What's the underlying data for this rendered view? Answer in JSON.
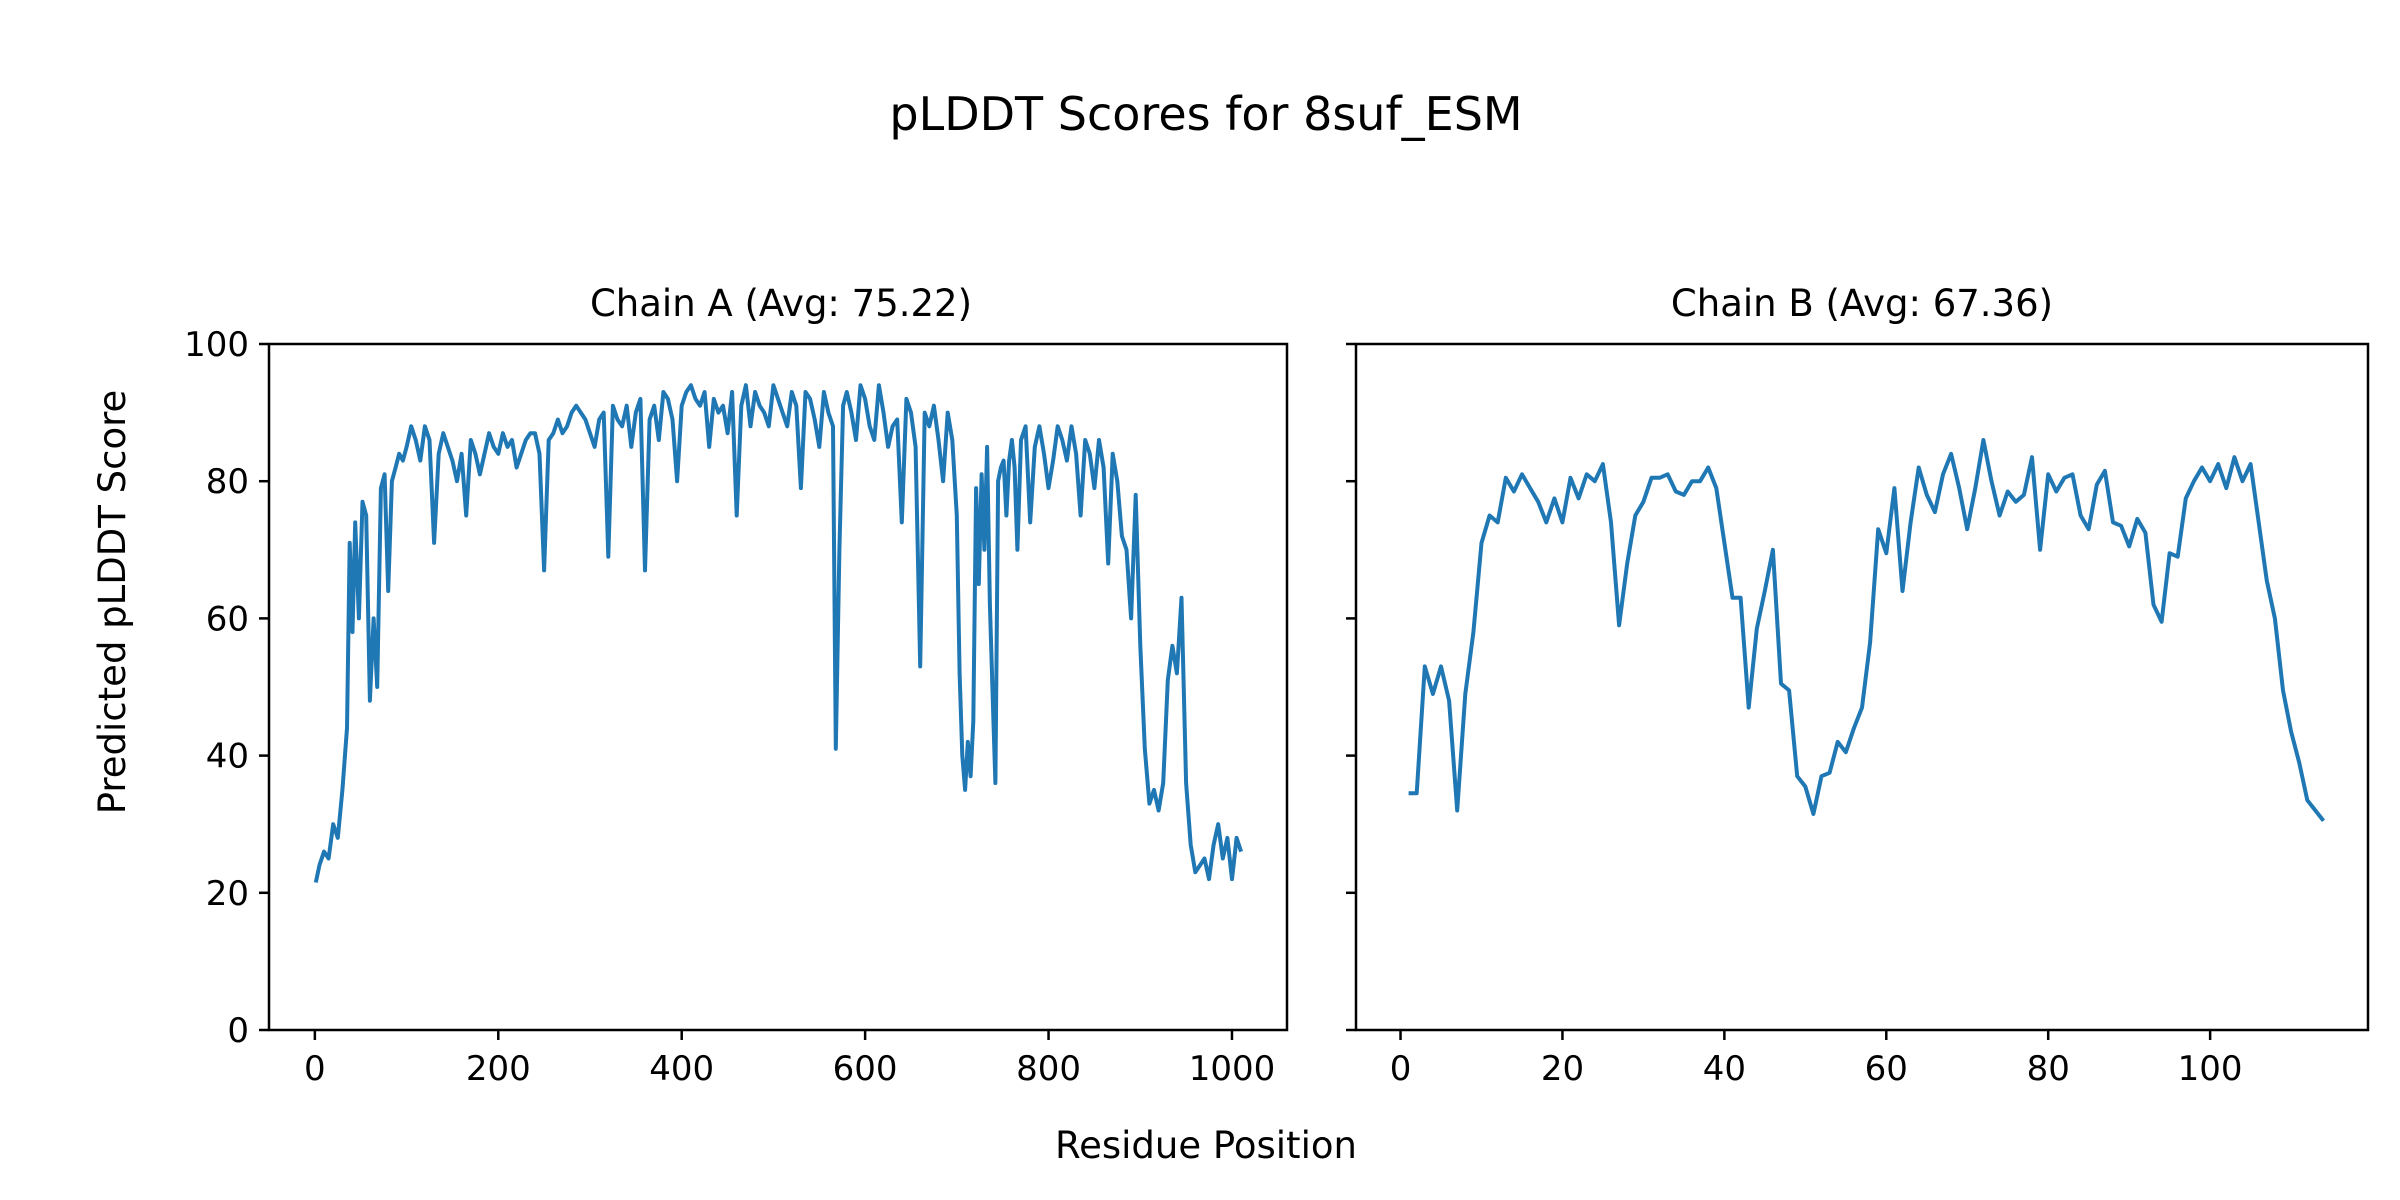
{
  "figure": {
    "title": "pLDDT Scores for 8suf_ESM",
    "shared_xlabel": "Residue Position",
    "shared_ylabel": "Predicted pLDDT Score"
  },
  "colors": {
    "line": "#1f77b4",
    "axis": "#000000",
    "background": "#ffffff"
  },
  "chart_data": [
    {
      "type": "line",
      "title": "Chain A (Avg: 75.22)",
      "xlabel": "Residue Position",
      "ylabel": "Predicted pLDDT Score",
      "xlim": [
        -50,
        1060
      ],
      "ylim": [
        0,
        100
      ],
      "xticks": [
        0,
        200,
        400,
        600,
        800,
        1000
      ],
      "yticks": [
        0,
        20,
        40,
        60,
        80,
        100
      ],
      "grid": false,
      "series": [
        {
          "name": "Chain A",
          "x": [
            1,
            5,
            10,
            15,
            20,
            25,
            30,
            35,
            38,
            41,
            44,
            48,
            52,
            56,
            60,
            64,
            68,
            72,
            76,
            80,
            84,
            88,
            92,
            96,
            100,
            105,
            110,
            115,
            120,
            125,
            130,
            135,
            140,
            145,
            150,
            155,
            160,
            165,
            170,
            175,
            180,
            185,
            190,
            195,
            200,
            205,
            210,
            215,
            220,
            225,
            230,
            235,
            240,
            245,
            250,
            255,
            260,
            265,
            270,
            275,
            280,
            285,
            290,
            295,
            300,
            305,
            310,
            315,
            320,
            325,
            330,
            335,
            340,
            345,
            350,
            355,
            360,
            365,
            370,
            375,
            380,
            385,
            390,
            395,
            400,
            405,
            410,
            415,
            420,
            425,
            430,
            435,
            440,
            445,
            450,
            455,
            460,
            465,
            470,
            475,
            480,
            485,
            490,
            495,
            500,
            505,
            510,
            515,
            520,
            525,
            530,
            535,
            540,
            545,
            550,
            555,
            560,
            565,
            568,
            572,
            576,
            580,
            585,
            590,
            595,
            600,
            605,
            610,
            615,
            620,
            625,
            630,
            635,
            640,
            645,
            650,
            655,
            660,
            665,
            670,
            675,
            680,
            685,
            690,
            695,
            700,
            703,
            706,
            709,
            712,
            715,
            718,
            721,
            724,
            727,
            730,
            733,
            736,
            739,
            742,
            745,
            748,
            751,
            754,
            757,
            760,
            763,
            766,
            770,
            775,
            780,
            785,
            790,
            795,
            800,
            805,
            810,
            815,
            820,
            825,
            830,
            835,
            840,
            845,
            850,
            855,
            860,
            865,
            870,
            875,
            880,
            885,
            890,
            895,
            900,
            905,
            910,
            915,
            920,
            925,
            930,
            935,
            940,
            945,
            950,
            955,
            960,
            965,
            970,
            975,
            980,
            985,
            990,
            995,
            1000,
            1005,
            1010
          ],
          "y": [
            21.5,
            24,
            26,
            25,
            30,
            28,
            35,
            44,
            71,
            58,
            74,
            60,
            77,
            75,
            48,
            60,
            50,
            79,
            81,
            64,
            80,
            82,
            84,
            83,
            85,
            88,
            86,
            83,
            88,
            86,
            71,
            84,
            87,
            85,
            83,
            80,
            84,
            75,
            86,
            84,
            81,
            84,
            87,
            85,
            84,
            87,
            85,
            86,
            82,
            84,
            86,
            87,
            87,
            84,
            67,
            86,
            87,
            89,
            87,
            88,
            90,
            91,
            90,
            89,
            87,
            85,
            89,
            90,
            69,
            91,
            89,
            88,
            91,
            85,
            90,
            92,
            67,
            89,
            91,
            86,
            93,
            92,
            89,
            80,
            91,
            93,
            94,
            92,
            91,
            93,
            85,
            92,
            90,
            91,
            87,
            93,
            75,
            91,
            94,
            88,
            93,
            91,
            90,
            88,
            94,
            92,
            90,
            88,
            93,
            91,
            79,
            93,
            92,
            89,
            85,
            93,
            90,
            88,
            41,
            70,
            91,
            93,
            90,
            86,
            94,
            92,
            88,
            86,
            94,
            90,
            85,
            88,
            89,
            74,
            92,
            90,
            85,
            53,
            90,
            88,
            91,
            86,
            80,
            90,
            86,
            75,
            52,
            40,
            35,
            42,
            37,
            45,
            79,
            65,
            81,
            70,
            85,
            62,
            49,
            36,
            80,
            82,
            83,
            75,
            83,
            86,
            82,
            70,
            86,
            88,
            74,
            85,
            88,
            84,
            79,
            83,
            88,
            86,
            83,
            88,
            84,
            75,
            86,
            84,
            79,
            86,
            82,
            68,
            84,
            80,
            72,
            70,
            60,
            78,
            56,
            41,
            33,
            35,
            32,
            36,
            51,
            56,
            52,
            63,
            36,
            27,
            23,
            24,
            25,
            22,
            27,
            30,
            25,
            28,
            22,
            28,
            26
          ]
        }
      ]
    },
    {
      "type": "line",
      "title": "Chain B (Avg: 67.36)",
      "xlabel": "Residue Position",
      "ylabel": "",
      "xlim": [
        -5.5,
        119.5
      ],
      "ylim": [
        0,
        100
      ],
      "xticks": [
        0,
        20,
        40,
        60,
        80,
        100
      ],
      "yticks": [
        0,
        20,
        40,
        60,
        80,
        100
      ],
      "ytick_labels_shown": false,
      "grid": false,
      "series": [
        {
          "name": "Chain B",
          "x": [
            1,
            2,
            3,
            4,
            5,
            6,
            7,
            8,
            9,
            10,
            11,
            12,
            13,
            14,
            15,
            16,
            17,
            18,
            19,
            20,
            21,
            22,
            23,
            24,
            25,
            26,
            27,
            28,
            29,
            30,
            31,
            32,
            33,
            34,
            35,
            36,
            37,
            38,
            39,
            40,
            41,
            42,
            43,
            44,
            45,
            46,
            47,
            48,
            49,
            50,
            51,
            52,
            53,
            54,
            55,
            56,
            57,
            58,
            59,
            60,
            61,
            62,
            63,
            64,
            65,
            66,
            67,
            68,
            69,
            70,
            71,
            72,
            73,
            74,
            75,
            76,
            77,
            78,
            79,
            80,
            81,
            82,
            83,
            84,
            85,
            86,
            87,
            88,
            89,
            90,
            91,
            92,
            93,
            94,
            95,
            96,
            97,
            98,
            99,
            100,
            101,
            102,
            103,
            104,
            105,
            106,
            107,
            108,
            109,
            110,
            111,
            112,
            113,
            114
          ],
          "y": [
            34.5,
            34.5,
            53,
            49,
            53,
            48,
            32,
            49,
            58,
            71,
            75,
            74,
            80.5,
            78.5,
            81,
            79,
            77,
            74,
            77.5,
            74,
            80.5,
            77.5,
            81,
            80,
            82.5,
            74,
            59,
            68,
            75,
            77,
            80.5,
            80.5,
            81,
            78.5,
            78,
            80,
            80,
            82,
            79,
            71,
            63,
            63,
            47,
            58.5,
            64,
            70,
            50.5,
            49.5,
            37,
            35.5,
            31.5,
            37,
            37.5,
            42,
            40.5,
            44,
            47,
            56.5,
            73,
            69.5,
            79,
            64,
            74,
            82,
            78,
            75.5,
            81,
            84,
            79,
            73,
            79,
            86,
            80,
            75,
            78.5,
            77,
            78,
            83.5,
            70,
            81,
            78.5,
            80.5,
            81,
            75,
            73,
            79.5,
            81.5,
            74,
            73.5,
            70.5,
            74.5,
            72.5,
            62,
            59.5,
            69.5,
            69,
            77.5,
            80,
            82,
            80,
            82.5,
            79,
            83.5,
            80,
            82.5,
            74,
            65.5,
            60,
            49.5,
            43.5,
            39,
            33.5,
            32,
            30.5
          ]
        }
      ]
    }
  ]
}
